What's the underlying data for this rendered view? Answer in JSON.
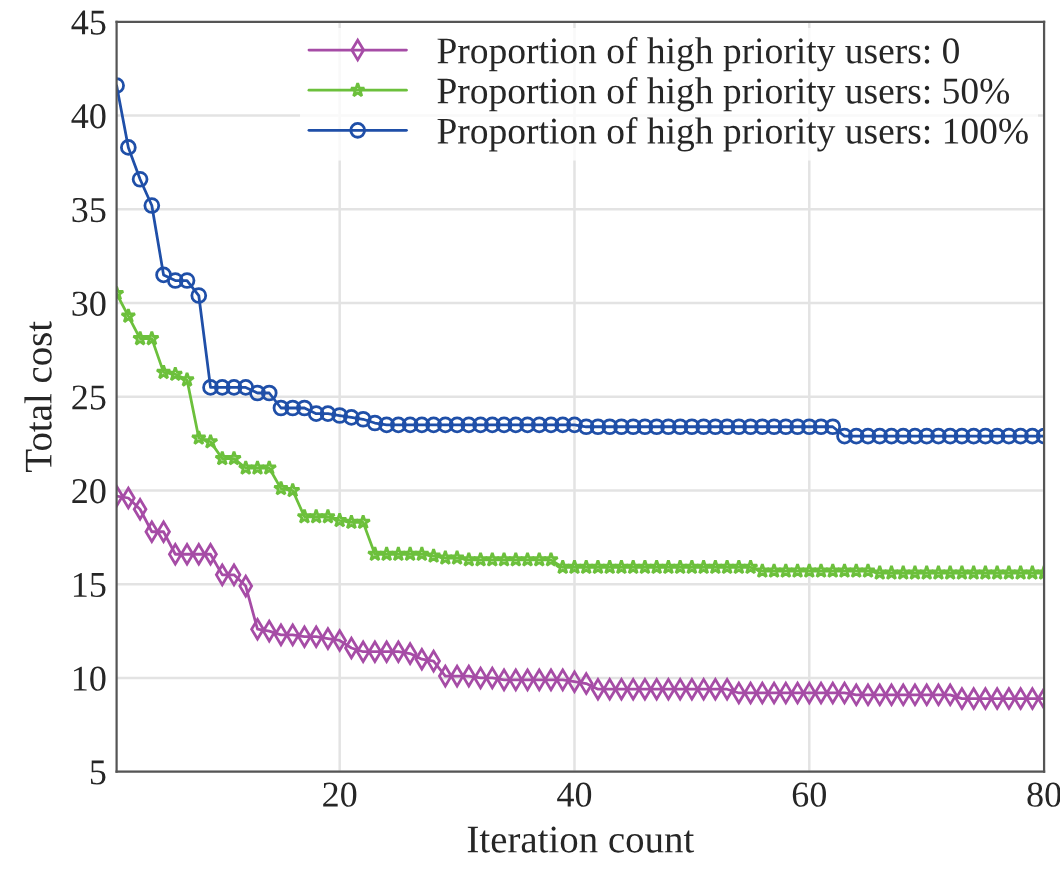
{
  "chart_data": {
    "type": "line",
    "xlabel": "Iteration count",
    "ylabel": "Total cost",
    "x": [
      1,
      2,
      3,
      4,
      5,
      6,
      7,
      8,
      9,
      10,
      11,
      12,
      13,
      14,
      15,
      16,
      17,
      18,
      19,
      20,
      21,
      22,
      23,
      24,
      25,
      26,
      27,
      28,
      29,
      30,
      31,
      32,
      33,
      34,
      35,
      36,
      37,
      38,
      39,
      40,
      41,
      42,
      43,
      44,
      45,
      46,
      47,
      48,
      49,
      50,
      51,
      52,
      53,
      54,
      55,
      56,
      57,
      58,
      59,
      60,
      61,
      62,
      63,
      64,
      65,
      66,
      67,
      68,
      69,
      70,
      71,
      72,
      73,
      74,
      75,
      76,
      77,
      78,
      79,
      80
    ],
    "series": [
      {
        "name": "Proportion of high priority users: 0",
        "color": "#a64ca6",
        "marker": "diamond",
        "values": [
          19.7,
          19.6,
          19.0,
          17.8,
          17.8,
          16.6,
          16.6,
          16.6,
          16.6,
          15.5,
          15.5,
          14.9,
          12.6,
          12.5,
          12.3,
          12.3,
          12.2,
          12.2,
          12.1,
          12.0,
          11.6,
          11.4,
          11.4,
          11.4,
          11.4,
          11.3,
          11.0,
          10.9,
          10.1,
          10.1,
          10.1,
          10.0,
          10.0,
          9.9,
          9.9,
          9.9,
          9.9,
          9.9,
          9.9,
          9.8,
          9.7,
          9.4,
          9.4,
          9.4,
          9.4,
          9.4,
          9.4,
          9.4,
          9.4,
          9.4,
          9.4,
          9.4,
          9.4,
          9.2,
          9.2,
          9.2,
          9.2,
          9.2,
          9.2,
          9.2,
          9.2,
          9.2,
          9.2,
          9.1,
          9.1,
          9.1,
          9.1,
          9.1,
          9.1,
          9.1,
          9.1,
          9.1,
          8.9,
          8.9,
          8.9,
          8.9,
          8.9,
          8.9,
          8.9,
          8.9
        ]
      },
      {
        "name": "Proportion of high priority users: 50%",
        "color": "#6cc03c",
        "marker": "star",
        "values": [
          30.5,
          29.3,
          28.1,
          28.1,
          26.3,
          26.2,
          25.9,
          22.8,
          22.6,
          21.7,
          21.7,
          21.2,
          21.2,
          21.2,
          20.1,
          20.0,
          18.6,
          18.6,
          18.6,
          18.4,
          18.3,
          18.3,
          16.6,
          16.6,
          16.6,
          16.6,
          16.6,
          16.5,
          16.4,
          16.4,
          16.3,
          16.3,
          16.3,
          16.3,
          16.3,
          16.3,
          16.3,
          16.3,
          15.9,
          15.9,
          15.9,
          15.9,
          15.9,
          15.9,
          15.9,
          15.9,
          15.9,
          15.9,
          15.9,
          15.9,
          15.9,
          15.9,
          15.9,
          15.9,
          15.9,
          15.7,
          15.7,
          15.7,
          15.7,
          15.7,
          15.7,
          15.7,
          15.7,
          15.7,
          15.7,
          15.6,
          15.6,
          15.6,
          15.6,
          15.6,
          15.6,
          15.6,
          15.6,
          15.6,
          15.6,
          15.6,
          15.6,
          15.6,
          15.6,
          15.6
        ]
      },
      {
        "name": "Proportion of high priority users: 100%",
        "color": "#1f4fa8",
        "marker": "circle",
        "values": [
          41.6,
          38.3,
          36.6,
          35.2,
          31.5,
          31.2,
          31.2,
          30.4,
          25.5,
          25.5,
          25.5,
          25.5,
          25.2,
          25.2,
          24.4,
          24.4,
          24.4,
          24.1,
          24.1,
          24.0,
          23.9,
          23.8,
          23.6,
          23.5,
          23.5,
          23.5,
          23.5,
          23.5,
          23.5,
          23.5,
          23.5,
          23.5,
          23.5,
          23.5,
          23.5,
          23.5,
          23.5,
          23.5,
          23.5,
          23.5,
          23.4,
          23.4,
          23.4,
          23.4,
          23.4,
          23.4,
          23.4,
          23.4,
          23.4,
          23.4,
          23.4,
          23.4,
          23.4,
          23.4,
          23.4,
          23.4,
          23.4,
          23.4,
          23.4,
          23.4,
          23.4,
          23.4,
          22.9,
          22.9,
          22.9,
          22.9,
          22.9,
          22.9,
          22.9,
          22.9,
          22.9,
          22.9,
          22.9,
          22.9,
          22.9,
          22.9,
          22.9,
          22.9,
          22.9,
          22.9
        ]
      }
    ],
    "xlim": [
      1,
      80
    ],
    "xticks": [
      20,
      40,
      60,
      80
    ],
    "ylim": [
      5,
      45
    ],
    "yticks": [
      5,
      10,
      15,
      20,
      25,
      30,
      35,
      40,
      45
    ],
    "grid": true,
    "legend": "top right",
    "line_style": "solid"
  }
}
